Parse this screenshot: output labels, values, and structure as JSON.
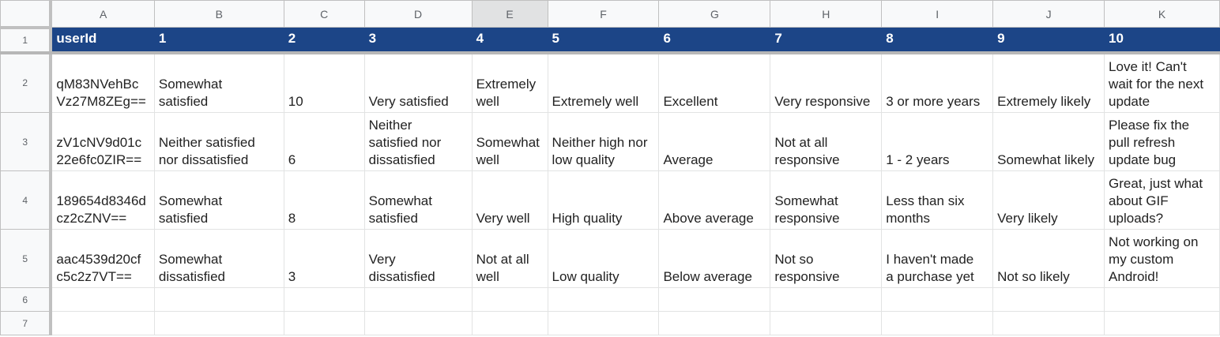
{
  "columns": [
    "A",
    "B",
    "C",
    "D",
    "E",
    "F",
    "G",
    "H",
    "I",
    "J",
    "K"
  ],
  "selected_column": "E",
  "header_row": {
    "row_number": "1",
    "cells": [
      "userId",
      "1",
      "2",
      "3",
      "4",
      "5",
      "6",
      "7",
      "8",
      "9",
      "10"
    ]
  },
  "rows": [
    {
      "row_number": "2",
      "cells": [
        "qM83NVehBc\nVz27M8ZEg==",
        "Somewhat\nsatisfied",
        "10",
        "Very satisfied",
        "Extremely\nwell",
        "Extremely well",
        "Excellent",
        "Very responsive",
        "3 or more years",
        "Extremely likely",
        "Love it! Can't\nwait for the next\nupdate"
      ]
    },
    {
      "row_number": "3",
      "cells": [
        "zV1cNV9d01c\n22e6fc0ZIR==",
        "Neither satisfied\nnor dissatisfied",
        "6",
        "Neither\nsatisfied nor\ndissatisfied",
        "Somewhat\nwell",
        "Neither high nor\nlow quality",
        "Average",
        "Not at all\nresponsive",
        "1 - 2 years",
        "Somewhat likely",
        "Please fix the\npull refresh\nupdate bug"
      ]
    },
    {
      "row_number": "4",
      "cells": [
        "189654d8346d\ncz2cZNV==",
        "Somewhat\nsatisfied",
        "8",
        "Somewhat\nsatisfied",
        "Very well",
        "High quality",
        "Above average",
        "Somewhat\nresponsive",
        "Less than six\nmonths",
        "Very likely",
        "Great, just what\nabout GIF\nuploads?"
      ]
    },
    {
      "row_number": "5",
      "cells": [
        "aac4539d20cf\nc5c2z7VT==",
        "Somewhat\ndissatisfied",
        "3",
        "Very\ndissatisfied",
        "Not at all\nwell",
        "Low quality",
        "Below average",
        "Not so\nresponsive",
        "I haven't made\na purchase yet",
        "Not so likely",
        "Not working on\nmy custom\nAndroid!"
      ]
    },
    {
      "row_number": "6",
      "cells": [
        "",
        "",
        "",
        "",
        "",
        "",
        "",
        "",
        "",
        "",
        ""
      ]
    },
    {
      "row_number": "7",
      "cells": [
        "",
        "",
        "",
        "",
        "",
        "",
        "",
        "",
        "",
        "",
        ""
      ]
    }
  ],
  "colors": {
    "header_fill": "#1c4587",
    "header_text": "#ffffff",
    "gridline": "#e2e3e3",
    "heading_bg": "#f8f9fa",
    "selected_heading_bg": "#e1e2e3"
  }
}
